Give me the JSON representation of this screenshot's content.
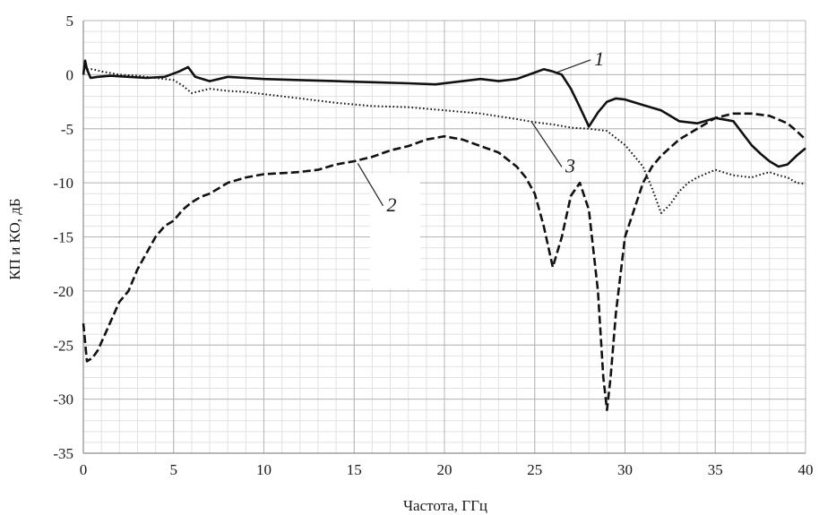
{
  "chart_data": {
    "type": "line",
    "title": "",
    "xlabel": "Частота, ГГц",
    "ylabel": "КП и КО, дБ",
    "xlim": [
      0,
      40
    ],
    "ylim": [
      -35,
      5
    ],
    "x_ticks": [
      0,
      5,
      10,
      15,
      20,
      25,
      30,
      35,
      40
    ],
    "y_ticks": [
      5,
      0,
      -5,
      -10,
      -15,
      -20,
      -25,
      -30,
      -35
    ],
    "x_tick_labels": [
      "0",
      "5",
      "10",
      "15",
      "20",
      "25",
      "30",
      "35",
      "40"
    ],
    "y_tick_labels": [
      "5",
      "0",
      "-5",
      "-10",
      "-15",
      "-20",
      "-25",
      "-30",
      "-35"
    ],
    "grid": true,
    "minor_grid": true,
    "colors": {
      "axis": "#8c8c8c",
      "major_grid": "#b4b4b4",
      "minor_grid": "#e2e2e2",
      "series": "#111111"
    },
    "series": [
      {
        "name": "1",
        "style": "solid",
        "x": [
          0,
          0.1,
          0.2,
          0.4,
          0.8,
          1.5,
          2.5,
          3.5,
          4.5,
          5.3,
          5.8,
          6.2,
          7,
          8,
          9,
          10,
          12,
          14,
          16,
          18,
          19.5,
          21,
          22,
          23,
          24,
          25,
          25.5,
          26,
          26.5,
          27,
          27.5,
          28,
          28.5,
          29,
          29.5,
          30,
          31,
          32,
          33,
          34,
          35,
          36,
          37,
          37.5,
          38,
          38.5,
          39,
          39.5,
          40
        ],
        "y": [
          0,
          1.3,
          0.5,
          -0.3,
          -0.2,
          -0.1,
          -0.2,
          -0.3,
          -0.2,
          0.3,
          0.7,
          -0.2,
          -0.6,
          -0.2,
          -0.3,
          -0.4,
          -0.5,
          -0.6,
          -0.7,
          -0.8,
          -0.9,
          -0.6,
          -0.4,
          -0.6,
          -0.4,
          0.2,
          0.5,
          0.3,
          0,
          -1.3,
          -3,
          -4.8,
          -3.5,
          -2.5,
          -2.2,
          -2.3,
          -2.8,
          -3.3,
          -4.3,
          -4.5,
          -4,
          -4.3,
          -6.5,
          -7.3,
          -8,
          -8.5,
          -8.3,
          -7.5,
          -6.8
        ]
      },
      {
        "name": "2",
        "style": "dashed",
        "x": [
          0,
          0.2,
          0.5,
          0.8,
          1.2,
          1.6,
          2,
          2.5,
          3,
          3.5,
          4,
          4.5,
          5,
          5.5,
          6,
          6.5,
          7,
          7.5,
          8,
          9,
          10,
          11,
          12,
          13,
          14,
          15,
          16,
          17,
          18,
          19,
          20,
          21,
          22,
          23,
          24,
          24.5,
          25,
          25.5,
          26,
          26.5,
          27,
          27.5,
          28,
          28.5,
          28.8,
          29,
          29.2,
          29.5,
          30,
          30.5,
          31,
          31.5,
          32,
          33,
          34,
          35,
          36,
          37,
          38,
          39,
          39.5,
          40
        ],
        "y": [
          -23,
          -26.5,
          -26.2,
          -25.5,
          -24,
          -22.5,
          -21,
          -20,
          -18,
          -16.5,
          -15,
          -14,
          -13.5,
          -12.5,
          -11.8,
          -11.3,
          -11,
          -10.5,
          -10,
          -9.5,
          -9.2,
          -9.1,
          -9,
          -8.8,
          -8.3,
          -8,
          -7.6,
          -7,
          -6.6,
          -6,
          -5.7,
          -6,
          -6.6,
          -7.2,
          -8.5,
          -9.5,
          -11,
          -14,
          -17.8,
          -15,
          -11.2,
          -10,
          -12.5,
          -20,
          -28,
          -31,
          -28,
          -22,
          -15,
          -12.5,
          -10,
          -8.5,
          -7.5,
          -6,
          -5,
          -4,
          -3.6,
          -3.6,
          -3.8,
          -4.5,
          -5.2,
          -6
        ]
      },
      {
        "name": "3",
        "style": "dotted",
        "x": [
          0,
          0.5,
          1,
          2,
          3,
          4,
          5,
          5.5,
          6,
          6.5,
          7,
          8,
          9,
          10,
          12,
          14,
          16,
          18,
          20,
          22,
          24,
          25,
          26,
          27,
          28,
          29,
          30,
          30.5,
          31,
          31.5,
          32,
          32.5,
          33,
          33.5,
          34,
          35,
          36,
          37,
          38,
          38.5,
          39,
          39.5,
          40
        ],
        "y": [
          0.5,
          0.5,
          0.3,
          0,
          -0.1,
          -0.3,
          -0.5,
          -1,
          -1.7,
          -1.5,
          -1.3,
          -1.5,
          -1.6,
          -1.8,
          -2.2,
          -2.6,
          -2.9,
          -3,
          -3.3,
          -3.6,
          -4.1,
          -4.4,
          -4.6,
          -4.9,
          -5,
          -5.2,
          -6.5,
          -7.5,
          -8.5,
          -10.5,
          -12.8,
          -12,
          -10.8,
          -10,
          -9.5,
          -8.8,
          -9.3,
          -9.5,
          -9,
          -9.3,
          -9.5,
          -10,
          -10.1
        ]
      }
    ],
    "annotations": [
      {
        "text": "1",
        "series": "1",
        "anchor_x": 26.2,
        "anchor_y": 0.2,
        "label_x": 28.3,
        "label_y": 1.7
      },
      {
        "text": "2",
        "series": "2",
        "anchor_x": 15.2,
        "anchor_y": -8.2,
        "label_x": 16.8,
        "label_y": -11.8
      },
      {
        "text": "3",
        "series": "3",
        "anchor_x": 24.8,
        "anchor_y": -4.3,
        "label_x": 26.7,
        "label_y": -8.2
      }
    ]
  }
}
